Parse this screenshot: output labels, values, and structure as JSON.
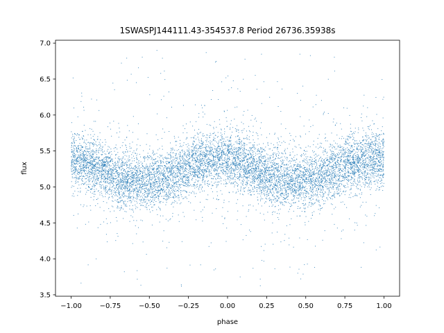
{
  "chart_data": {
    "type": "scatter",
    "title": "1SWASPJ144111.43-354537.8 Period 26736.35938s",
    "xlabel": "phase",
    "ylabel": "flux",
    "xlim": [
      -1.1,
      1.1
    ],
    "ylim": [
      3.48,
      7.04
    ],
    "x_ticks": [
      -1.0,
      -0.75,
      -0.5,
      -0.25,
      0.0,
      0.25,
      0.5,
      0.75,
      1.0
    ],
    "x_tick_labels": [
      "−1.00",
      "−0.75",
      "−0.50",
      "−0.25",
      "0.00",
      "0.25",
      "0.50",
      "0.75",
      "1.00"
    ],
    "y_ticks": [
      3.5,
      4.0,
      4.5,
      5.0,
      5.5,
      6.0,
      6.5,
      7.0
    ],
    "y_tick_labels": [
      "3.5",
      "4.0",
      "4.5",
      "5.0",
      "5.5",
      "6.0",
      "6.5",
      "7.0"
    ],
    "grid": false,
    "legend": "none",
    "series": [
      {
        "color": "#1f77b4",
        "marker": "point",
        "x_range": [
          -1.0,
          1.0
        ],
        "y_range": [
          3.6,
          6.9
        ],
        "light_curve": [
          {
            "phase": -1.0,
            "flux": 5.38
          },
          {
            "phase": -0.9,
            "flux": 5.33
          },
          {
            "phase": -0.8,
            "flux": 5.25
          },
          {
            "phase": -0.7,
            "flux": 5.13
          },
          {
            "phase": -0.6,
            "flux": 5.1
          },
          {
            "phase": -0.5,
            "flux": 5.08
          },
          {
            "phase": -0.4,
            "flux": 5.12
          },
          {
            "phase": -0.3,
            "flux": 5.22
          },
          {
            "phase": -0.2,
            "flux": 5.33
          },
          {
            "phase": -0.1,
            "flux": 5.38
          },
          {
            "phase": 0.0,
            "flux": 5.4
          },
          {
            "phase": 0.1,
            "flux": 5.33
          },
          {
            "phase": 0.2,
            "flux": 5.22
          },
          {
            "phase": 0.3,
            "flux": 5.12
          },
          {
            "phase": 0.4,
            "flux": 5.08
          },
          {
            "phase": 0.5,
            "flux": 5.1
          },
          {
            "phase": 0.6,
            "flux": 5.13
          },
          {
            "phase": 0.7,
            "flux": 5.25
          },
          {
            "phase": 0.8,
            "flux": 5.33
          },
          {
            "phase": 0.9,
            "flux": 5.38
          },
          {
            "phase": 1.0,
            "flux": 5.4
          }
        ]
      }
    ]
  }
}
